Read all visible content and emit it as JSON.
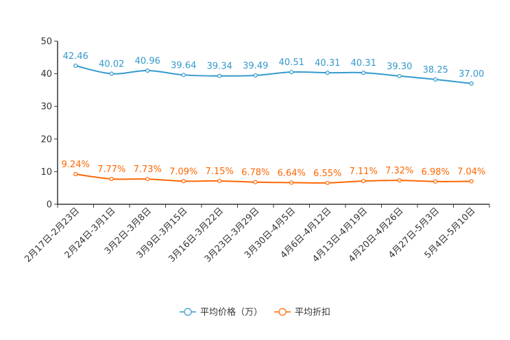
{
  "chart_data": {
    "type": "line",
    "title": "",
    "xlabel": "",
    "ylabel": "",
    "ylim": [
      0,
      50
    ],
    "yticks": [
      0,
      10,
      20,
      30,
      40,
      50
    ],
    "grid": false,
    "legend_position": "bottom-center",
    "categories": [
      "2月17日-2月23日",
      "2月24日-3月1日",
      "3月2日-3月8日",
      "3月9日-3月15日",
      "3月16日-3月22日",
      "3月23日-3月29日",
      "3月30日-4月5日",
      "4月6日-4月12日",
      "4月13日-4月19日",
      "4月20日-4月26日",
      "4月27日-5月3日",
      "5月4日-5月10日"
    ],
    "series": [
      {
        "name": "平均价格（万）",
        "color": "#3399cc",
        "values": [
          42.46,
          40.02,
          40.96,
          39.64,
          39.34,
          39.49,
          40.51,
          40.31,
          40.31,
          39.3,
          38.25,
          37.0
        ],
        "labels": [
          "42.46",
          "40.02",
          "40.96",
          "39.64",
          "39.34",
          "39.49",
          "40.51",
          "40.31",
          "40.31",
          "39.30",
          "38.25",
          "37.00"
        ]
      },
      {
        "name": "平均折扣",
        "color": "#ff6600",
        "values": [
          9.24,
          7.77,
          7.73,
          7.09,
          7.15,
          6.78,
          6.64,
          6.55,
          7.11,
          7.32,
          6.98,
          7.04
        ],
        "labels": [
          "9.24%",
          "7.77%",
          "7.73%",
          "7.09%",
          "7.15%",
          "6.78%",
          "6.64%",
          "6.55%",
          "7.11%",
          "7.32%",
          "6.98%",
          "7.04%"
        ]
      }
    ]
  }
}
